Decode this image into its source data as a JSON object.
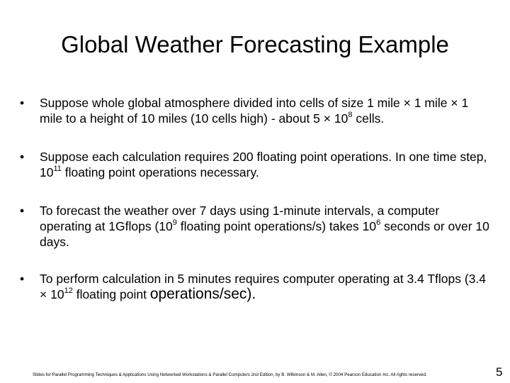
{
  "slide": {
    "title": "Global Weather Forecasting Example",
    "bullet_char": "•",
    "times": "×",
    "bullet1": {
      "a": "Suppose whole global atmosphere divided into cells of size 1 mile",
      "b": "1",
      "c": "mile",
      "d": "1 mile to a height of 10 miles (10 cells high) - about 5",
      "e": "10",
      "exp": "8",
      "f": "cells."
    },
    "bullet2": {
      "a": "Suppose each calculation requires 200 floating point operations. In one time step, 10",
      "exp": "11",
      "b": "floating point operations necessary."
    },
    "bullet3": {
      "a": "To forecast the weather over 7 days using 1-minute intervals, a computer operating at 1Gflops (10",
      "exp1": "9",
      "b": "floating point operations/s) takes 10",
      "exp2": "6",
      "c": "seconds or over 10 days."
    },
    "bullet4": {
      "a": "To perform calculation in 5 minutes requires computer operating at 3.4 Tflops (3.4",
      "b": "10",
      "exp": "12",
      "c": "floating point",
      "d": "operations/sec)."
    },
    "footer": "Slides for Parallel Programming Techniques & Applications Using Networked Workstations & Parallel Computers 2nd Edition, by B. Wilkinson & M. Allen, © 2004 Pearson Education Inc. All rights reserved.",
    "page_number": "5"
  }
}
